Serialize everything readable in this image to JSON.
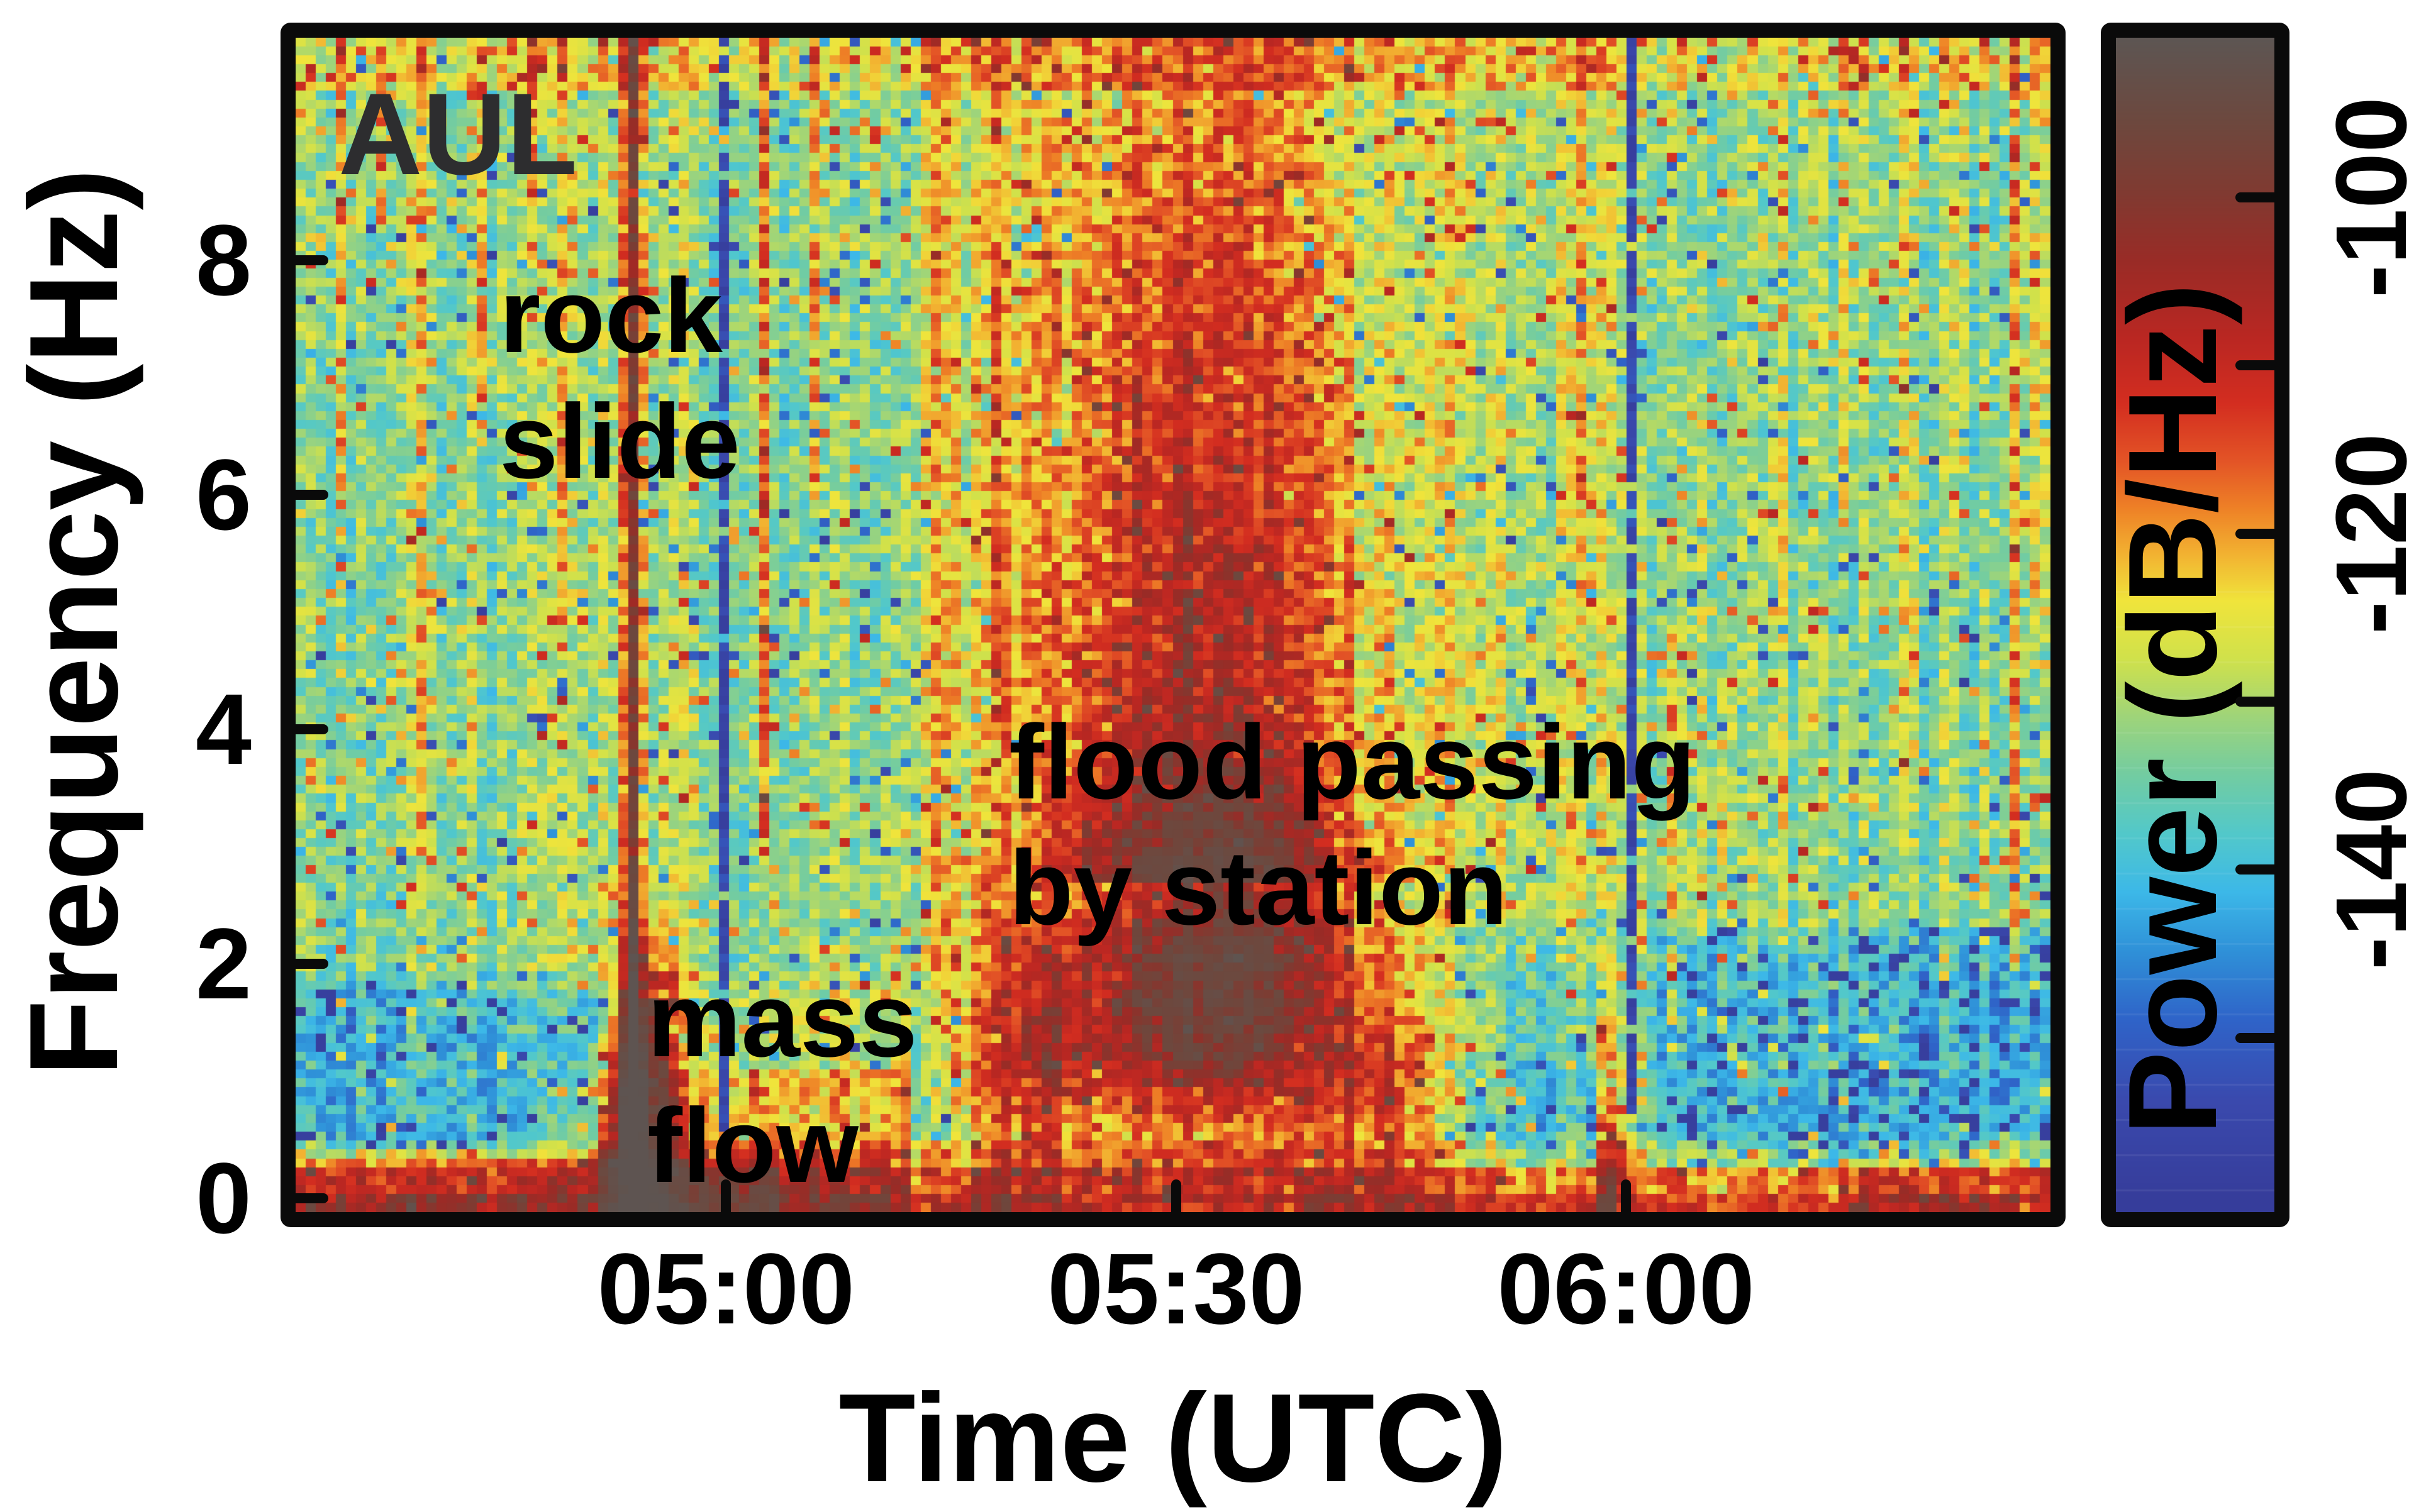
{
  "chart_data": {
    "type": "heatmap",
    "station_label": "AUL",
    "x_axis": {
      "label": "Time (UTC)",
      "tick_labels": [
        "05:00",
        "05:30",
        "06:00"
      ],
      "tick_minutes": [
        28.7,
        58.7,
        88.7
      ],
      "window_start": "04:31",
      "window_end": "06:28",
      "window_minutes": 117
    },
    "y_axis": {
      "label": "Frequency (Hz)",
      "tick_labels": [
        "0",
        "2",
        "4",
        "6",
        "8"
      ],
      "tick_values": [
        0,
        2,
        4,
        6,
        8
      ],
      "range_hz": [
        0,
        10
      ]
    },
    "colorbar": {
      "label": "Power (dB/Hz)",
      "tick_labels": [
        "-100",
        "-120",
        "-140"
      ],
      "tick_values": [
        -100,
        -120,
        -140
      ],
      "minor_tick_values": [
        -110,
        -130,
        -150
      ],
      "range_db": [
        -90,
        -159
      ],
      "colormap_stops": [
        {
          "v": 0.0,
          "c": "#363d9b"
        },
        {
          "v": 0.08,
          "c": "#3a49ad"
        },
        {
          "v": 0.15,
          "c": "#2f63c8"
        },
        {
          "v": 0.21,
          "c": "#2f91d8"
        },
        {
          "v": 0.26,
          "c": "#3cb8e8"
        },
        {
          "v": 0.31,
          "c": "#52c8ca"
        },
        {
          "v": 0.36,
          "c": "#72cca2"
        },
        {
          "v": 0.41,
          "c": "#9ed47a"
        },
        {
          "v": 0.46,
          "c": "#d0e14b"
        },
        {
          "v": 0.51,
          "c": "#f0e43b"
        },
        {
          "v": 0.55,
          "c": "#f2b231"
        },
        {
          "v": 0.59,
          "c": "#ee8026"
        },
        {
          "v": 0.63,
          "c": "#e35426"
        },
        {
          "v": 0.68,
          "c": "#d32d20"
        },
        {
          "v": 0.735,
          "c": "#ba2722"
        },
        {
          "v": 0.8,
          "c": "#9a2b26"
        },
        {
          "v": 0.86,
          "c": "#803a31"
        },
        {
          "v": 0.92,
          "c": "#6d483e"
        },
        {
          "v": 1.0,
          "c": "#5b5755"
        }
      ]
    },
    "annotations": [
      {
        "id": "rock-slide",
        "lines": [
          "rock",
          "slide"
        ],
        "t_center": "04:52",
        "f_center_hz": 7.2
      },
      {
        "id": "mass-flow",
        "lines": [
          "mass",
          "flow"
        ],
        "t_center": "04:55",
        "f_center_hz": 1.3
      },
      {
        "id": "flood",
        "lines": [
          "flood passing",
          "by station"
        ],
        "t_center": "05:33",
        "f_center_hz": 3.3
      }
    ],
    "heatmap_model": {
      "comment": "parametric description of the spectrogram content; t = minutes after 04:31 UTC, f = Hz, amp_db added to ambient background",
      "base_level_db": -131.5,
      "speckle_db": 6.2,
      "column_jitter_db": 3.5,
      "cold_outlier": {
        "prob": 0.045,
        "prob_quiet_zone": 0.14,
        "prob_left_low": 0.08,
        "amp_db_min": 11,
        "amp_db_rand": 12
      },
      "warm_outlier": {
        "prob": 0.05,
        "prob_top_rows": 0.1,
        "amp_db_min": 8,
        "amp_db_rand": 9
      },
      "features": [
        {
          "id": "bottom-edge-band",
          "kind": "box",
          "t": [
            0,
            117
          ],
          "f": [
            0,
            0.35
          ],
          "amp_db": 14
        },
        {
          "id": "bottom-edge-band-upper",
          "kind": "box",
          "t": [
            0,
            117
          ],
          "f": [
            0.35,
            0.6
          ],
          "amp_db": 6
        },
        {
          "id": "bottom-left-red",
          "kind": "box",
          "t": [
            0,
            32
          ],
          "f": [
            0,
            0.45
          ],
          "amp_db": 8
        },
        {
          "id": "bottom-right-warm",
          "kind": "box",
          "t": [
            103,
            117
          ],
          "f": [
            0,
            0.45
          ],
          "amp_db": 5
        },
        {
          "id": "low-left-cool",
          "kind": "box",
          "t": [
            0,
            21
          ],
          "f": [
            0.55,
            1.9
          ],
          "amp_db": -5
        },
        {
          "id": "rock-slide-stripe",
          "kind": "gauss",
          "t0": 22.4,
          "st": 0.5,
          "frange": [
            0.25,
            9.93
          ],
          "amp_db": 28,
          "low_f_boost": 1.25
        },
        {
          "id": "rock-slide-halo",
          "kind": "gauss",
          "t0": 22.4,
          "st": 1.5,
          "frange": [
            0.25,
            9.93
          ],
          "amp_db": 9
        },
        {
          "id": "mass-flow-core",
          "kind": "gauss",
          "t0": 22.6,
          "st": 2.1,
          "f0": 0.5,
          "sf": 1.0,
          "amp_db": 45
        },
        {
          "id": "mass-flow-halo",
          "kind": "gauss",
          "t0": 23.5,
          "st": 1.9,
          "f0": 1.5,
          "sf": 0.85,
          "amp_db": 22
        },
        {
          "id": "post-slide-warm",
          "kind": "box",
          "t": [
            24.5,
            41
          ],
          "f": [
            0,
            1.2
          ],
          "amp_db": 13
        },
        {
          "id": "post-slide-warm-upper",
          "kind": "box",
          "t": [
            24.5,
            41
          ],
          "f": [
            1.2,
            2
          ],
          "amp_db": 6
        },
        {
          "id": "flood-onset",
          "kind": "gauss",
          "t0": 48,
          "st": 4,
          "f0": 1.2,
          "sf": 1.3,
          "amp_db": 14
        },
        {
          "id": "flood-core",
          "kind": "gauss",
          "t0": 58.5,
          "st": 10.5,
          "f0": 1.5,
          "sf": 0.95,
          "amp_db": 22
        },
        {
          "id": "flood-core-late",
          "kind": "gauss",
          "t0": 63,
          "st": 7.5,
          "f0": 2.3,
          "sf": 0.95,
          "amp_db": 16
        },
        {
          "id": "flood-halo",
          "kind": "gauss",
          "t0": 58.5,
          "st": 13.5,
          "f0": 2.3,
          "sf": 1.8,
          "amp_db": 12
        },
        {
          "id": "flood-plume",
          "kind": "gauss",
          "t0": 60,
          "st": 11,
          "f0": 5,
          "sf": 6,
          "frange": [
            2.8,
            9.93
          ],
          "amp_db": 24
        },
        {
          "id": "flood-tail",
          "kind": "gauss",
          "t0": 72,
          "st": 6,
          "f0": 1.0,
          "sf": 0.95,
          "amp_db": 16
        },
        {
          "id": "pre-0600-cool",
          "kind": "box",
          "t": [
            76,
            88
          ],
          "f": [
            0.35,
            1.3
          ],
          "amp_db": -4
        },
        {
          "id": "warm-blob-0600",
          "kind": "gauss",
          "t0": 87.7,
          "st": 0.9,
          "f0": 0.5,
          "sf": 1.2,
          "amp_db": 22
        },
        {
          "id": "quiet-zone-right",
          "kind": "box",
          "t": [
            90.5,
            117
          ],
          "f": [
            0.4,
            2.4
          ],
          "amp_db": -6
        },
        {
          "id": "post-flood-warm-upper",
          "kind": "box",
          "t": [
            75,
            88.5
          ],
          "f": [
            2.5,
            9.93
          ],
          "amp_db": 4
        },
        {
          "id": "pre-plume-warm",
          "kind": "box",
          "t": [
            41,
            50
          ],
          "f": [
            4,
            9.93
          ],
          "amp_db": 3
        },
        {
          "id": "top-edge-warm",
          "kind": "box",
          "t": [
            0,
            117
          ],
          "f": [
            9.45,
            9.93
          ],
          "amp_db": 6
        }
      ],
      "data_gaps": [
        {
          "id": "gap-0500",
          "t": 28.7,
          "half_width_min": 0.35,
          "f": [
            0.4,
            9.93
          ],
          "level_db": -150
        },
        {
          "id": "gap-0600",
          "t": 88.9,
          "half_width_min": 0.35,
          "f": [
            0.8,
            9.93
          ],
          "level_db": -150
        }
      ],
      "transient_streaks": [
        {
          "t": 3.2,
          "f": [
            6,
            10
          ],
          "amp_db": 12
        },
        {
          "t": 5.8,
          "f": [
            8.3,
            10
          ],
          "amp_db": 11
        },
        {
          "t": 8.6,
          "f": [
            3,
            10
          ],
          "amp_db": 9
        },
        {
          "t": 12.3,
          "f": [
            6.5,
            10
          ],
          "amp_db": 15
        },
        {
          "t": 15.6,
          "f": [
            8,
            10
          ],
          "amp_db": 10
        },
        {
          "t": 18.0,
          "f": [
            5,
            10
          ],
          "amp_db": 9
        },
        {
          "t": 26.3,
          "f": [
            2,
            10
          ],
          "amp_db": 11
        },
        {
          "t": 31.2,
          "f": [
            3,
            10
          ],
          "amp_db": 15
        },
        {
          "t": 34.8,
          "f": [
            6,
            10
          ],
          "amp_db": 11
        },
        {
          "t": 38.5,
          "f": [
            8,
            10
          ],
          "amp_db": 10
        },
        {
          "t": 43.0,
          "f": [
            2,
            10
          ],
          "amp_db": 10
        },
        {
          "t": 46.5,
          "f": [
            4.5,
            10
          ],
          "amp_db": 12
        },
        {
          "t": 86.0,
          "f": [
            5,
            10
          ],
          "amp_db": 12
        },
        {
          "t": 92.0,
          "f": [
            1.5,
            5
          ],
          "amp_db": 13
        },
        {
          "t": 93.5,
          "f": [
            2,
            7
          ],
          "amp_db": 10
        },
        {
          "t": 95.4,
          "f": [
            1.5,
            4.5
          ],
          "amp_db": 16
        },
        {
          "t": 99.0,
          "f": [
            1,
            10
          ],
          "amp_db": 11
        },
        {
          "t": 103.5,
          "f": [
            6,
            10
          ],
          "amp_db": 13
        },
        {
          "t": 107.5,
          "f": [
            3,
            10
          ],
          "amp_db": 15
        },
        {
          "t": 111.0,
          "f": [
            6.5,
            10
          ],
          "amp_db": 12
        },
        {
          "t": 114.8,
          "f": [
            2,
            10
          ],
          "amp_db": 13
        },
        {
          "t": 116.3,
          "f": [
            5,
            10
          ],
          "amp_db": 14
        }
      ]
    }
  }
}
